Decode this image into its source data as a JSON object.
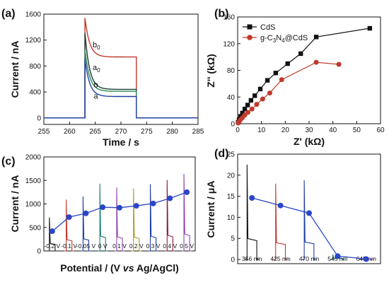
{
  "chart_data": [
    {
      "id": "a",
      "panel_label": "(a)",
      "type": "line",
      "xlabel": "Time / s",
      "ylabel": "Current / nA",
      "xlim": [
        255,
        285
      ],
      "ylim": [
        -100,
        1600
      ],
      "xticks": [
        255,
        260,
        265,
        270,
        275,
        280,
        285
      ],
      "yticks": [
        0,
        400,
        800,
        1200,
        1600
      ],
      "light_on": 263,
      "light_off": 273,
      "series": [
        {
          "name": "b0",
          "label_text": "b",
          "label_sub": "0",
          "color": "#c0392b",
          "baseline": 0,
          "peak": 1540,
          "steady": 940
        },
        {
          "name": "a0",
          "label_text": "a",
          "label_sub": "0",
          "color": "#1a3d33",
          "baseline": 0,
          "peak": 1310,
          "steady": 440
        },
        {
          "name": "b",
          "label_text": "b",
          "label_sub": "",
          "color": "#2e8b57",
          "baseline": 0,
          "peak": 1050,
          "steady": 410
        },
        {
          "name": "a",
          "label_text": "a",
          "label_sub": "",
          "color": "#1f3fa8",
          "baseline": 0,
          "peak": 910,
          "steady": 330
        }
      ],
      "grid": false
    },
    {
      "id": "b",
      "panel_label": "(b)",
      "type": "scatter",
      "xlabel": "Z' (kΩ)",
      "ylabel": "Z'' (kΩ)",
      "xlim": [
        0,
        60
      ],
      "ylim": [
        0,
        160
      ],
      "xticks": [
        0,
        10,
        20,
        30,
        40,
        50,
        60
      ],
      "yticks": [
        0,
        40,
        80,
        120,
        160
      ],
      "legend_position": "top-left",
      "series": [
        {
          "name": "CdS",
          "color": "#111111",
          "marker": "square",
          "x": [
            0.2,
            0.6,
            1.2,
            2.0,
            3.0,
            4.2,
            5.6,
            7.2,
            9.5,
            12.5,
            16,
            21,
            26.5,
            33,
            55.5
          ],
          "y": [
            2,
            6,
            11,
            16,
            22,
            28,
            35,
            42,
            52,
            65,
            76,
            90,
            105,
            130,
            143
          ]
        },
        {
          "name": "g-C3N4@CdS",
          "legend_main": "g-C",
          "legend_sub1": "3",
          "legend_mid": "N",
          "legend_sub2": "4",
          "legend_tail": "@CdS",
          "color": "#c0392b",
          "marker": "circle",
          "x": [
            0.2,
            0.6,
            1.2,
            2.0,
            3.0,
            4.3,
            6.0,
            8.0,
            10.5,
            13.5,
            18.5,
            33,
            42.5
          ],
          "y": [
            1,
            3,
            6,
            9,
            13,
            17,
            22,
            29,
            37,
            46,
            66,
            92,
            89
          ]
        }
      ],
      "grid": false
    },
    {
      "id": "c",
      "panel_label": "(c)",
      "type": "line",
      "xlabel": "Potential / (V vs Ag/AgCl)",
      "xlabel_pre": "Potential / (V ",
      "xlabel_italic": "vs",
      "xlabel_post": " Ag/AgCl)",
      "ylabel": "Current / nA",
      "ylim": [
        0,
        2000
      ],
      "yticks": [
        0,
        500,
        1000,
        1500,
        2000
      ],
      "categories": [
        "-0.2 V",
        "-0.1 V",
        "-0.05 V",
        "0 V",
        "0.1 V",
        "0.2 V",
        "0.3 V",
        "0.4 V",
        "0.5 V"
      ],
      "spike_peaks": [
        710,
        1090,
        1160,
        1430,
        1350,
        1330,
        1420,
        1510,
        1640
      ],
      "spike_colors": [
        "#111111",
        "#c0392b",
        "#1f3fa8",
        "#1a7f7a",
        "#8e44ad",
        "#a89a2a",
        "#1f3fa8",
        "#8a1e3a",
        "#8e44ad"
      ],
      "values": [
        420,
        720,
        800,
        930,
        920,
        960,
        1010,
        1120,
        1250
      ],
      "line_color": "#2c46c8",
      "grid": false
    },
    {
      "id": "d",
      "panel_label": "(d)",
      "type": "line",
      "xlabel": "",
      "ylabel": "Current / μA",
      "ylim": [
        -1,
        25
      ],
      "yticks": [
        0,
        5,
        10,
        15,
        20,
        25
      ],
      "categories": [
        "356 nm",
        "425 nm",
        "470 nm",
        "545 nm",
        "645 nm"
      ],
      "spike_peaks": [
        22.5,
        18.0,
        18.8,
        1.2,
        0.3
      ],
      "spike_colors": [
        "#111111",
        "#c0392b",
        "#1f3fa8",
        "#1a7f7a",
        "#8e44ad"
      ],
      "values": [
        14.6,
        12.8,
        11.0,
        0.8,
        0.1
      ],
      "line_color": "#2c46c8",
      "grid": false
    }
  ]
}
